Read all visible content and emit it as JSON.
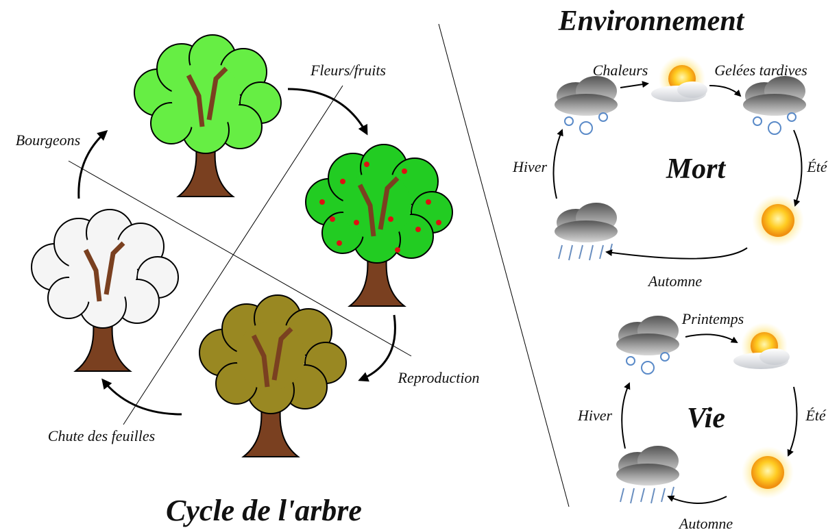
{
  "tree_cycle": {
    "title": "Cycle de l'arbre",
    "labels": [
      "Bourgeons",
      "Fleurs/fruits",
      "Reproduction",
      "Chute des feuilles"
    ]
  },
  "environment": {
    "title": "Environnement",
    "cycles": [
      {
        "center": "Mort",
        "labels": [
          "Chaleurs",
          "Gelées tardives",
          "Été",
          "Automne",
          "Hiver"
        ]
      },
      {
        "center": "Vie",
        "labels": [
          "Printemps",
          "Été",
          "Automne",
          "Hiver"
        ]
      }
    ]
  }
}
